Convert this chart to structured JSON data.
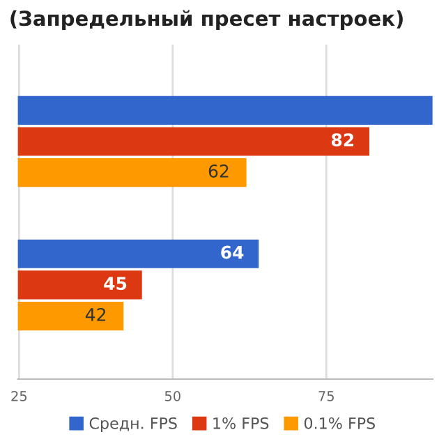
{
  "chart_data": {
    "type": "bar",
    "orientation": "horizontal",
    "title": "(Запредельный пресет настроек)",
    "categories": [
      null,
      null
    ],
    "series": [
      {
        "name": "Средн. FPS",
        "color": "#3366cc",
        "values": [
          92.3,
          64
        ],
        "value_labels": [
          null,
          "64"
        ]
      },
      {
        "name": "1% FPS",
        "color": "#dc3912",
        "values": [
          82,
          45
        ],
        "value_labels": [
          "82",
          "45"
        ]
      },
      {
        "name": "0.1% FPS",
        "color": "#ff9900",
        "values": [
          62,
          42
        ],
        "value_labels": [
          "62",
          "42"
        ]
      }
    ],
    "xlim": [
      24.8,
      92.3
    ],
    "xticks": [
      25,
      50,
      75
    ],
    "grid": "x",
    "legend": "bottom"
  }
}
